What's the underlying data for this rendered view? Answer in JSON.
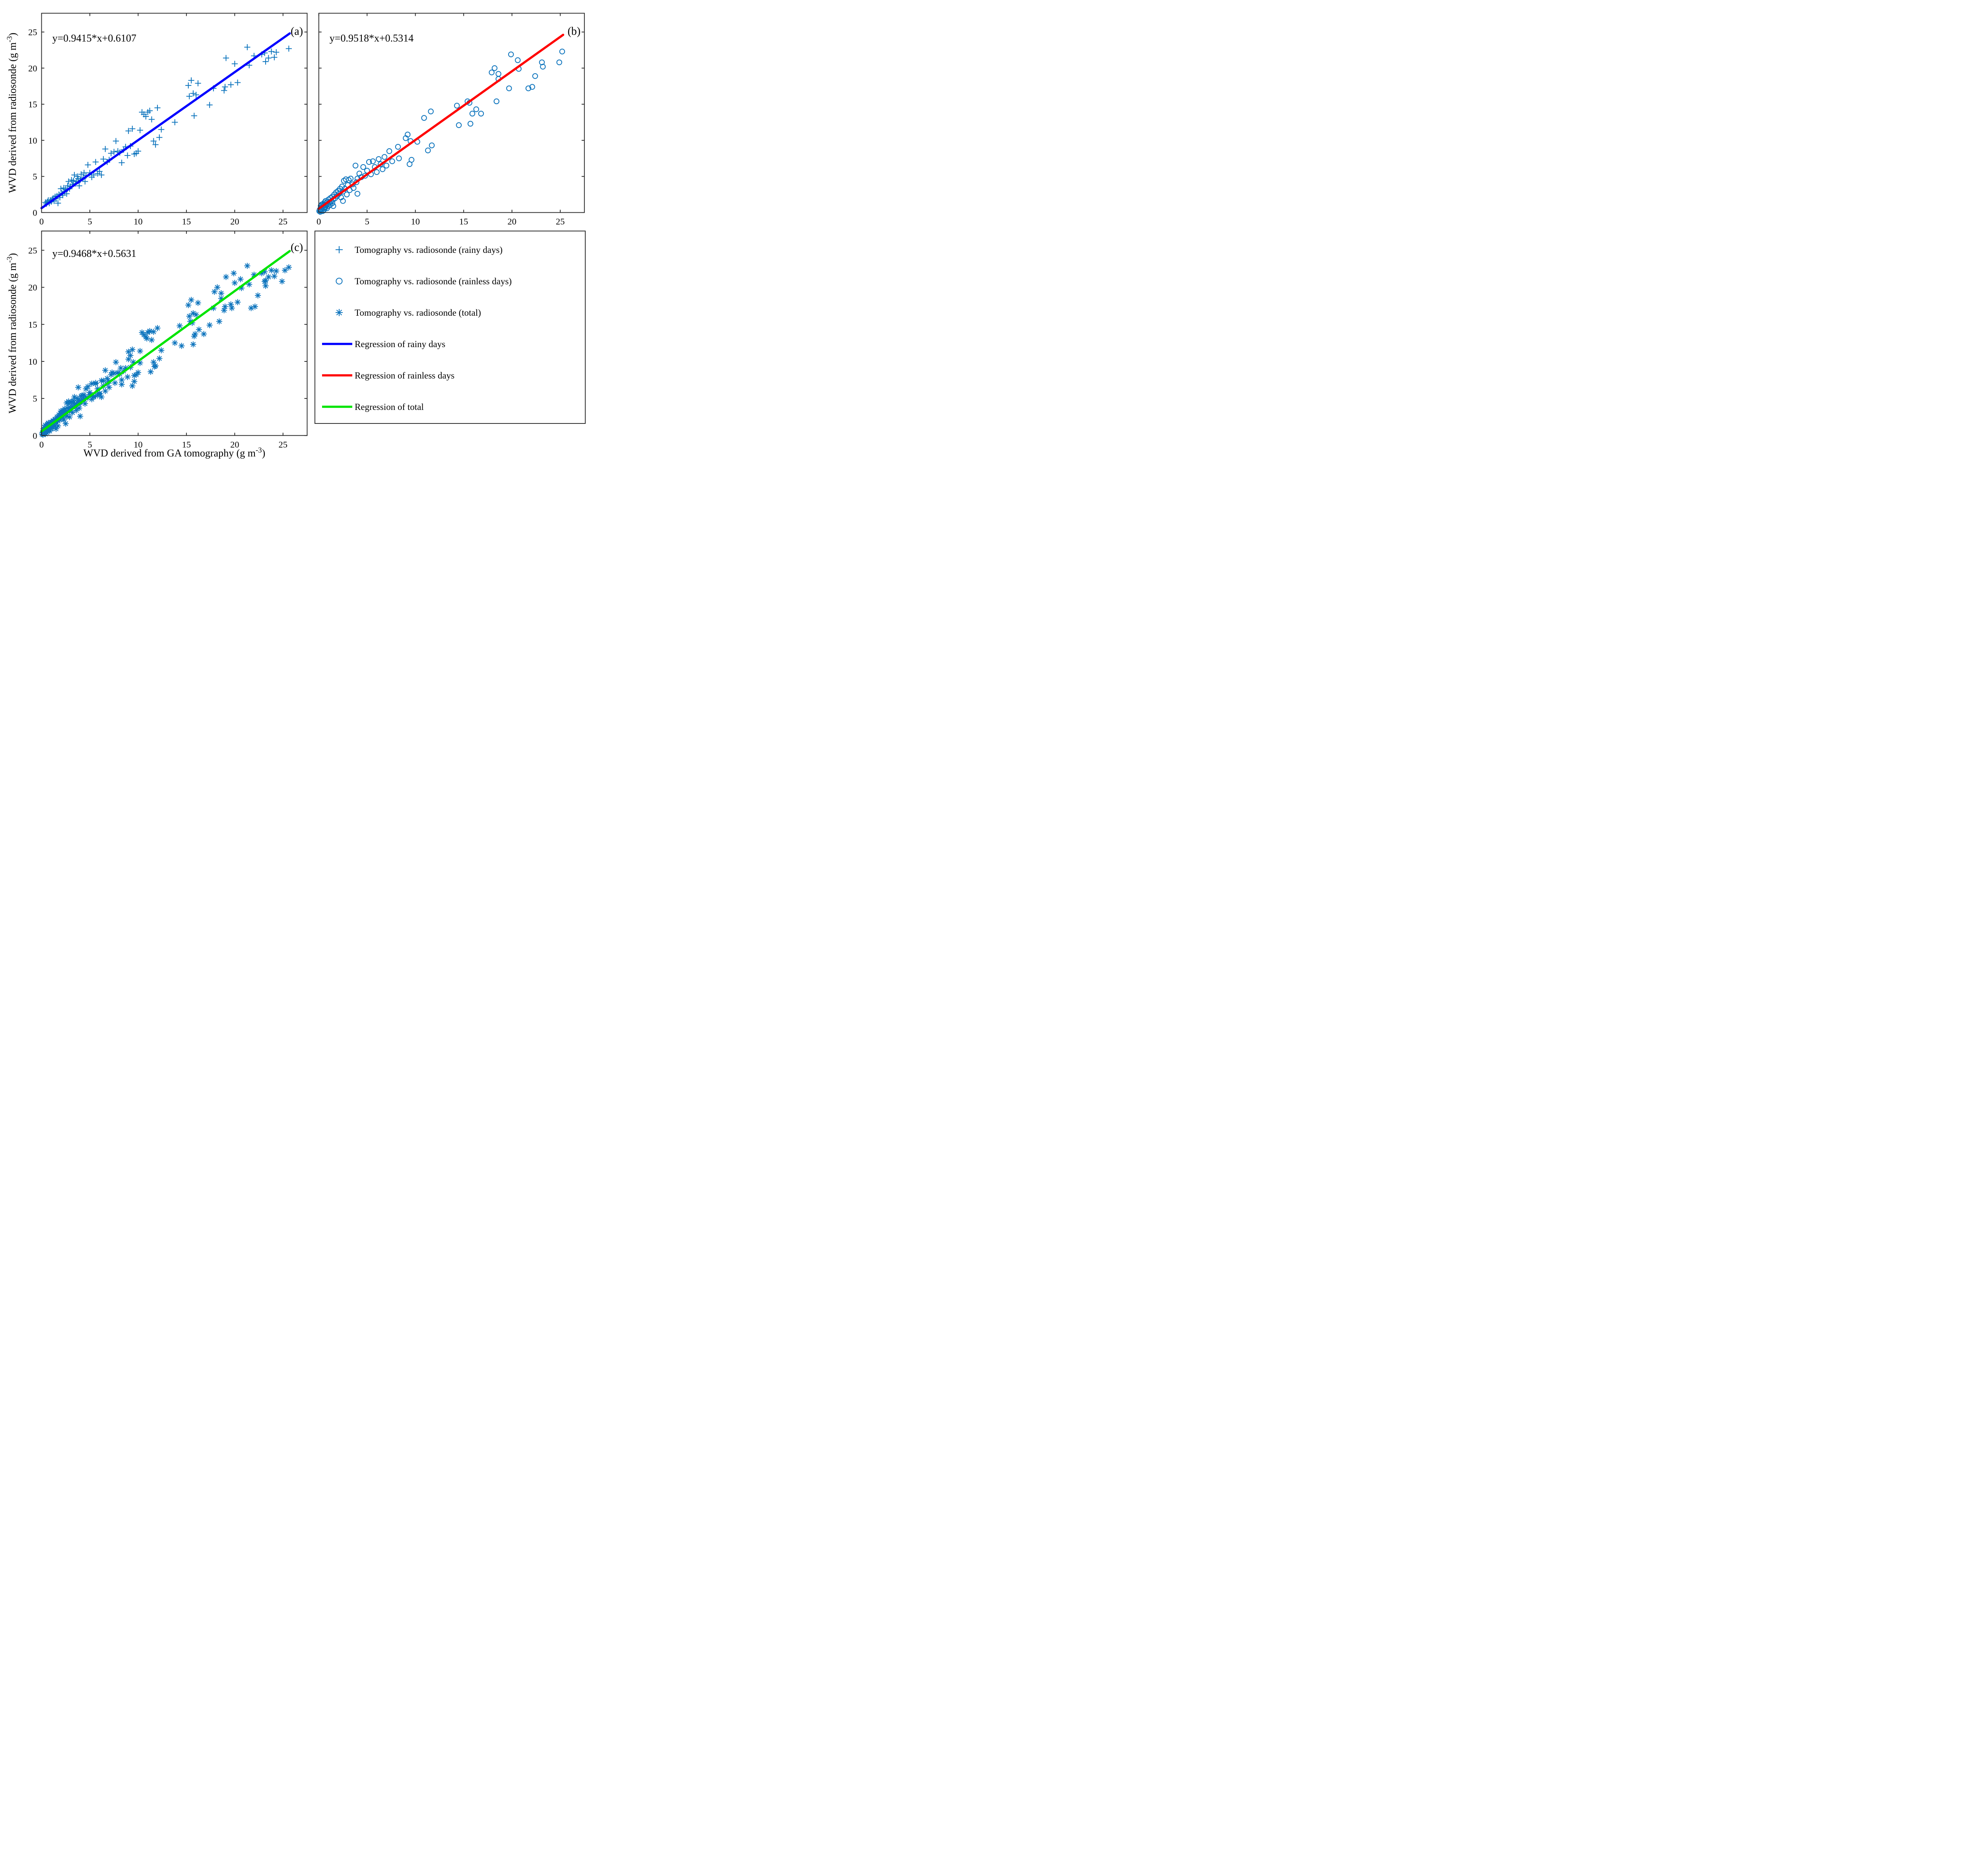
{
  "chart_data": {
    "type": "scatter",
    "title": "",
    "x_label": {
      "base": "WVD derived from GA tomography (g m",
      "sup": "-3",
      "close": ")"
    },
    "y_label": {
      "base": "WVD derived from radiosonde (g m",
      "sup": "-3",
      "close": ")"
    },
    "x_ticks": [
      0,
      5,
      10,
      15,
      20,
      25
    ],
    "y_ticks": [
      0,
      5,
      10,
      15,
      20,
      25
    ],
    "x_range": [
      0,
      27.5
    ],
    "y_range": [
      0,
      27.6
    ],
    "grid": false,
    "marker_color": "#0d74bd",
    "axis_color": "#262626",
    "background": "#ffffff",
    "panels": [
      {
        "id": "a",
        "letter": "(a)",
        "equation": "y=0.9415*x+0.6107",
        "slope": 0.9415,
        "intercept": 0.6107,
        "marker": "plus",
        "series": "rainy",
        "line_color": "#0000ff",
        "line_x": [
          0,
          25.7
        ],
        "x_tick_labels": true,
        "y_tick_labels": true
      },
      {
        "id": "b",
        "letter": "(b)",
        "equation": "y=0.9518*x+0.5314",
        "slope": 0.9518,
        "intercept": 0.5314,
        "marker": "circle",
        "series": "rainless",
        "line_color": "#ff0000",
        "line_x": [
          0,
          25.3
        ],
        "x_tick_labels": true,
        "y_tick_labels": false
      },
      {
        "id": "c",
        "letter": "(c)",
        "equation": "y=0.9468*x+0.5631",
        "slope": 0.9468,
        "intercept": 0.5631,
        "marker": "asterisk",
        "series": "total",
        "line_color": "#00e400",
        "line_x": [
          0,
          25.7
        ],
        "x_tick_labels": true,
        "y_tick_labels": true
      }
    ],
    "points": {
      "rainy": [
        [
          0.4,
          1.4
        ],
        [
          0.5,
          1.2
        ],
        [
          0.6,
          1.5
        ],
        [
          0.7,
          1.7
        ],
        [
          0.8,
          1.3
        ],
        [
          0.9,
          1.7
        ],
        [
          1.0,
          1.5
        ],
        [
          1.1,
          1.8
        ],
        [
          1.2,
          2.0
        ],
        [
          1.3,
          1.6
        ],
        [
          1.4,
          2.2
        ],
        [
          1.5,
          1.9
        ],
        [
          1.6,
          2.3
        ],
        [
          1.7,
          1.3
        ],
        [
          1.8,
          2.5
        ],
        [
          1.9,
          2.1
        ],
        [
          2.0,
          3.3
        ],
        [
          2.1,
          2.7
        ],
        [
          2.2,
          2.4
        ],
        [
          2.3,
          3.4
        ],
        [
          2.4,
          2.9
        ],
        [
          2.5,
          3.2
        ],
        [
          2.6,
          2.6
        ],
        [
          2.7,
          3.7
        ],
        [
          2.8,
          4.3
        ],
        [
          2.9,
          3.3
        ],
        [
          3.0,
          3.6
        ],
        [
          3.1,
          4.5
        ],
        [
          3.2,
          3.9
        ],
        [
          3.3,
          4.4
        ],
        [
          3.4,
          5.2
        ],
        [
          3.5,
          4.0
        ],
        [
          3.6,
          4.3
        ],
        [
          3.7,
          5.0
        ],
        [
          3.8,
          4.7
        ],
        [
          3.9,
          3.7
        ],
        [
          4.0,
          4.5
        ],
        [
          4.1,
          5.3
        ],
        [
          4.3,
          4.8
        ],
        [
          4.4,
          5.5
        ],
        [
          4.5,
          4.3
        ],
        [
          4.6,
          5.1
        ],
        [
          4.8,
          6.6
        ],
        [
          5.0,
          5.5
        ],
        [
          5.2,
          4.9
        ],
        [
          5.4,
          5.2
        ],
        [
          5.6,
          7.0
        ],
        [
          5.8,
          5.4
        ],
        [
          6.0,
          5.7
        ],
        [
          6.2,
          5.2
        ],
        [
          6.4,
          7.4
        ],
        [
          6.6,
          8.8
        ],
        [
          6.8,
          7.0
        ],
        [
          7.0,
          7.3
        ],
        [
          7.2,
          8.2
        ],
        [
          7.5,
          8.4
        ],
        [
          7.7,
          9.9
        ],
        [
          7.9,
          8.5
        ],
        [
          8.1,
          8.3
        ],
        [
          8.3,
          6.9
        ],
        [
          8.5,
          8.7
        ],
        [
          8.7,
          9.1
        ],
        [
          8.9,
          7.9
        ],
        [
          9.0,
          11.3
        ],
        [
          9.2,
          9.2
        ],
        [
          9.4,
          11.6
        ],
        [
          9.6,
          8.1
        ],
        [
          9.8,
          8.2
        ],
        [
          10.0,
          8.5
        ],
        [
          10.2,
          11.4
        ],
        [
          10.4,
          13.9
        ],
        [
          10.6,
          13.6
        ],
        [
          10.8,
          13.3
        ],
        [
          11.0,
          13.9
        ],
        [
          11.2,
          14.1
        ],
        [
          11.4,
          12.9
        ],
        [
          11.6,
          9.9
        ],
        [
          11.8,
          9.4
        ],
        [
          12.0,
          14.5
        ],
        [
          12.2,
          10.4
        ],
        [
          12.4,
          11.5
        ],
        [
          13.8,
          12.5
        ],
        [
          15.2,
          17.6
        ],
        [
          15.3,
          16.1
        ],
        [
          15.5,
          18.3
        ],
        [
          15.7,
          16.5
        ],
        [
          15.8,
          13.4
        ],
        [
          16.0,
          16.3
        ],
        [
          16.2,
          17.9
        ],
        [
          17.4,
          14.9
        ],
        [
          17.8,
          17.2
        ],
        [
          18.9,
          16.9
        ],
        [
          19.0,
          17.4
        ],
        [
          19.1,
          21.4
        ],
        [
          19.6,
          17.7
        ],
        [
          20.0,
          20.6
        ],
        [
          20.3,
          18.0
        ],
        [
          21.3,
          22.9
        ],
        [
          21.5,
          20.4
        ],
        [
          22.0,
          21.7
        ],
        [
          22.8,
          21.9
        ],
        [
          23.1,
          22.1
        ],
        [
          23.2,
          20.9
        ],
        [
          23.5,
          21.4
        ],
        [
          23.8,
          22.3
        ],
        [
          24.1,
          21.5
        ],
        [
          24.3,
          22.2
        ],
        [
          25.6,
          22.7
        ]
      ],
      "rainless": [
        [
          0.05,
          0.2
        ],
        [
          0.1,
          0.4
        ],
        [
          0.15,
          0.1
        ],
        [
          0.2,
          0.5
        ],
        [
          0.2,
          0.9
        ],
        [
          0.25,
          0.3
        ],
        [
          0.3,
          0.7
        ],
        [
          0.3,
          1.1
        ],
        [
          0.35,
          0.5
        ],
        [
          0.4,
          0.2
        ],
        [
          0.4,
          0.9
        ],
        [
          0.45,
          1.2
        ],
        [
          0.5,
          0.6
        ],
        [
          0.5,
          1.0
        ],
        [
          0.55,
          0.4
        ],
        [
          0.6,
          0.8
        ],
        [
          0.6,
          1.4
        ],
        [
          0.65,
          1.1
        ],
        [
          0.7,
          0.7
        ],
        [
          0.7,
          1.6
        ],
        [
          0.75,
          1.0
        ],
        [
          0.8,
          1.3
        ],
        [
          0.85,
          0.6
        ],
        [
          0.9,
          1.5
        ],
        [
          0.95,
          1.2
        ],
        [
          1.0,
          0.9
        ],
        [
          1.0,
          1.8
        ],
        [
          1.1,
          1.4
        ],
        [
          1.2,
          1.1
        ],
        [
          1.2,
          2.0
        ],
        [
          1.3,
          1.6
        ],
        [
          1.4,
          1.3
        ],
        [
          1.4,
          2.2
        ],
        [
          1.5,
          1.8
        ],
        [
          1.5,
          0.9
        ],
        [
          1.6,
          2.5
        ],
        [
          1.7,
          2.0
        ],
        [
          1.8,
          2.8
        ],
        [
          1.9,
          2.3
        ],
        [
          2.0,
          3.0
        ],
        [
          2.1,
          2.6
        ],
        [
          2.2,
          3.3
        ],
        [
          2.3,
          2.1
        ],
        [
          2.4,
          3.6
        ],
        [
          2.5,
          2.9
        ],
        [
          2.5,
          1.6
        ],
        [
          2.6,
          4.4
        ],
        [
          2.7,
          3.3
        ],
        [
          2.8,
          4.6
        ],
        [
          2.9,
          2.5
        ],
        [
          3.0,
          3.8
        ],
        [
          3.1,
          4.5
        ],
        [
          3.2,
          3.1
        ],
        [
          3.3,
          4.7
        ],
        [
          3.5,
          3.9
        ],
        [
          3.6,
          3.4
        ],
        [
          3.8,
          6.5
        ],
        [
          3.9,
          4.2
        ],
        [
          4.0,
          4.7
        ],
        [
          4.0,
          2.6
        ],
        [
          4.2,
          5.4
        ],
        [
          4.4,
          4.9
        ],
        [
          4.6,
          6.3
        ],
        [
          4.8,
          5.1
        ],
        [
          5.0,
          5.8
        ],
        [
          5.2,
          7.0
        ],
        [
          5.4,
          5.3
        ],
        [
          5.6,
          7.1
        ],
        [
          5.8,
          6.3
        ],
        [
          6.0,
          5.6
        ],
        [
          6.2,
          7.4
        ],
        [
          6.4,
          6.7
        ],
        [
          6.6,
          6.0
        ],
        [
          6.8,
          7.7
        ],
        [
          7.0,
          6.5
        ],
        [
          7.3,
          8.5
        ],
        [
          7.6,
          7.1
        ],
        [
          8.2,
          9.1
        ],
        [
          8.3,
          7.5
        ],
        [
          9.0,
          10.3
        ],
        [
          9.2,
          10.8
        ],
        [
          9.4,
          6.7
        ],
        [
          9.5,
          9.9
        ],
        [
          9.6,
          7.3
        ],
        [
          10.2,
          9.8
        ],
        [
          10.9,
          13.1
        ],
        [
          11.3,
          8.6
        ],
        [
          11.6,
          14.0
        ],
        [
          11.7,
          9.3
        ],
        [
          14.3,
          14.8
        ],
        [
          14.5,
          12.1
        ],
        [
          15.4,
          15.4
        ],
        [
          15.6,
          15.2
        ],
        [
          15.9,
          13.7
        ],
        [
          16.3,
          14.3
        ],
        [
          16.8,
          13.7
        ],
        [
          15.7,
          12.3
        ],
        [
          17.9,
          19.4
        ],
        [
          18.2,
          20.0
        ],
        [
          18.4,
          15.4
        ],
        [
          18.6,
          19.2
        ],
        [
          18.6,
          18.5
        ],
        [
          19.7,
          17.2
        ],
        [
          19.9,
          21.9
        ],
        [
          20.6,
          21.1
        ],
        [
          20.7,
          19.9
        ],
        [
          21.7,
          17.2
        ],
        [
          22.1,
          17.4
        ],
        [
          22.4,
          18.9
        ],
        [
          23.1,
          20.8
        ],
        [
          23.2,
          20.2
        ],
        [
          24.9,
          20.8
        ],
        [
          25.2,
          22.3
        ]
      ]
    },
    "legend": {
      "entries": [
        {
          "type": "marker",
          "marker": "plus",
          "label": "Tomography vs. radiosonde (rainy days)"
        },
        {
          "type": "marker",
          "marker": "circle",
          "label": "Tomography vs. radiosonde (rainless days)"
        },
        {
          "type": "marker",
          "marker": "asterisk",
          "label": "Tomography vs. radiosonde (total)"
        },
        {
          "type": "line",
          "color": "#0000ff",
          "label": "Regression of rainy days"
        },
        {
          "type": "line",
          "color": "#ff0000",
          "label": "Regression of rainless days"
        },
        {
          "type": "line",
          "color": "#00e400",
          "label": "Regression of total"
        }
      ],
      "position": "bottom-right"
    }
  }
}
